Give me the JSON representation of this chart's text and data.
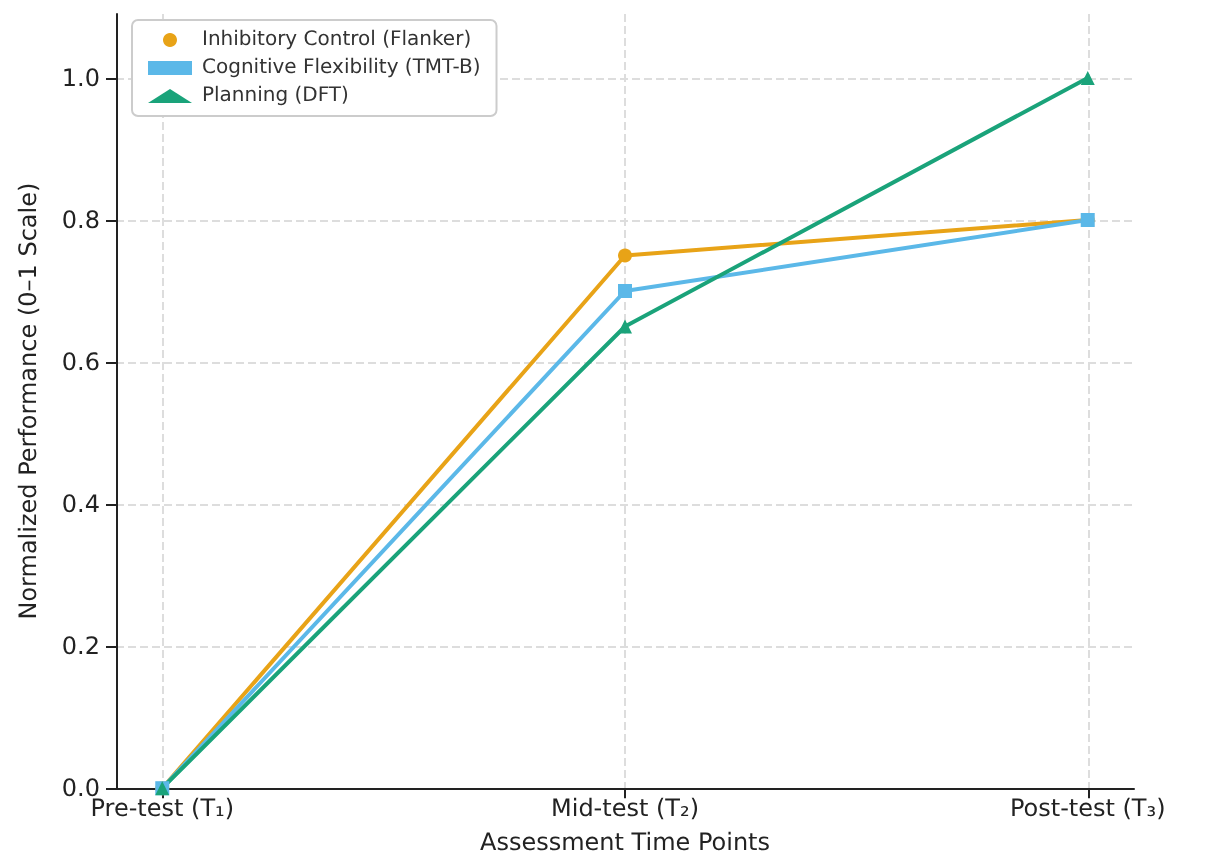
{
  "chart_data": {
    "type": "line",
    "xlabel": "Assessment Time Points",
    "ylabel": "Normalized Performance (0–1 Scale)",
    "categories": [
      "Pre-test (T₁)",
      "Mid-test (T₂)",
      "Post-test (T₃)"
    ],
    "series": [
      {
        "name": "Inhibitory Control (Flanker)",
        "color": "#e8a317",
        "marker": "circle",
        "values": [
          0,
          0.75,
          0.8
        ]
      },
      {
        "name": "Cognitive Flexibility (TMT-B)",
        "color": "#5bb8e8",
        "marker": "square",
        "values": [
          0,
          0.7,
          0.8
        ]
      },
      {
        "name": "Planning (DFT)",
        "color": "#1aa37a",
        "marker": "triangle",
        "values": [
          0,
          0.65,
          1.0
        ]
      }
    ],
    "ylim": [
      0,
      1.09
    ],
    "yticks": [
      {
        "value": 0,
        "label": "0.0"
      },
      {
        "value": 0.2,
        "label": "0.2"
      },
      {
        "value": 0.4,
        "label": "0.4"
      },
      {
        "value": 0.6,
        "label": "0.6"
      },
      {
        "value": 0.8,
        "label": "0.8"
      },
      {
        "value": 1.0,
        "label": "1.0"
      }
    ],
    "grid": true,
    "legend": "top left",
    "line_style": "solid"
  }
}
